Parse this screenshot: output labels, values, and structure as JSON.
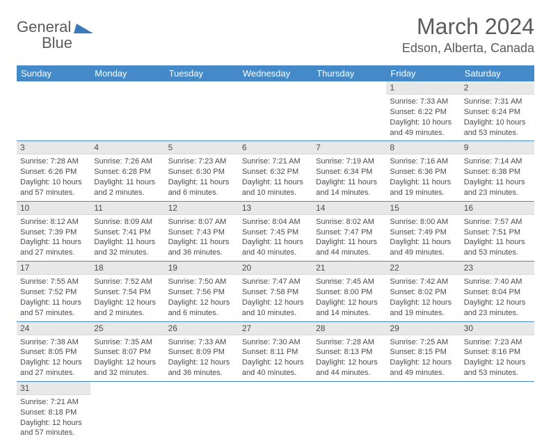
{
  "brand": {
    "part1": "General",
    "part2": "Blue"
  },
  "title": "March 2024",
  "location": "Edson, Alberta, Canada",
  "colors": {
    "header_bg": "#4489c8",
    "header_text": "#ffffff",
    "daynum_bg": "#e8e8e8",
    "text": "#4a4a4a",
    "rule": "#4489c8"
  },
  "day_names": [
    "Sunday",
    "Monday",
    "Tuesday",
    "Wednesday",
    "Thursday",
    "Friday",
    "Saturday"
  ],
  "weeks": [
    [
      null,
      null,
      null,
      null,
      null,
      {
        "n": "1",
        "sr": "7:33 AM",
        "ss": "6:22 PM",
        "d1": "10 hours",
        "d2": "and 49 minutes."
      },
      {
        "n": "2",
        "sr": "7:31 AM",
        "ss": "6:24 PM",
        "d1": "10 hours",
        "d2": "and 53 minutes."
      }
    ],
    [
      {
        "n": "3",
        "sr": "7:28 AM",
        "ss": "6:26 PM",
        "d1": "10 hours",
        "d2": "and 57 minutes."
      },
      {
        "n": "4",
        "sr": "7:26 AM",
        "ss": "6:28 PM",
        "d1": "11 hours",
        "d2": "and 2 minutes."
      },
      {
        "n": "5",
        "sr": "7:23 AM",
        "ss": "6:30 PM",
        "d1": "11 hours",
        "d2": "and 6 minutes."
      },
      {
        "n": "6",
        "sr": "7:21 AM",
        "ss": "6:32 PM",
        "d1": "11 hours",
        "d2": "and 10 minutes."
      },
      {
        "n": "7",
        "sr": "7:19 AM",
        "ss": "6:34 PM",
        "d1": "11 hours",
        "d2": "and 14 minutes."
      },
      {
        "n": "8",
        "sr": "7:16 AM",
        "ss": "6:36 PM",
        "d1": "11 hours",
        "d2": "and 19 minutes."
      },
      {
        "n": "9",
        "sr": "7:14 AM",
        "ss": "6:38 PM",
        "d1": "11 hours",
        "d2": "and 23 minutes."
      }
    ],
    [
      {
        "n": "10",
        "sr": "8:12 AM",
        "ss": "7:39 PM",
        "d1": "11 hours",
        "d2": "and 27 minutes."
      },
      {
        "n": "11",
        "sr": "8:09 AM",
        "ss": "7:41 PM",
        "d1": "11 hours",
        "d2": "and 32 minutes."
      },
      {
        "n": "12",
        "sr": "8:07 AM",
        "ss": "7:43 PM",
        "d1": "11 hours",
        "d2": "and 36 minutes."
      },
      {
        "n": "13",
        "sr": "8:04 AM",
        "ss": "7:45 PM",
        "d1": "11 hours",
        "d2": "and 40 minutes."
      },
      {
        "n": "14",
        "sr": "8:02 AM",
        "ss": "7:47 PM",
        "d1": "11 hours",
        "d2": "and 44 minutes."
      },
      {
        "n": "15",
        "sr": "8:00 AM",
        "ss": "7:49 PM",
        "d1": "11 hours",
        "d2": "and 49 minutes."
      },
      {
        "n": "16",
        "sr": "7:57 AM",
        "ss": "7:51 PM",
        "d1": "11 hours",
        "d2": "and 53 minutes."
      }
    ],
    [
      {
        "n": "17",
        "sr": "7:55 AM",
        "ss": "7:52 PM",
        "d1": "11 hours",
        "d2": "and 57 minutes."
      },
      {
        "n": "18",
        "sr": "7:52 AM",
        "ss": "7:54 PM",
        "d1": "12 hours",
        "d2": "and 2 minutes."
      },
      {
        "n": "19",
        "sr": "7:50 AM",
        "ss": "7:56 PM",
        "d1": "12 hours",
        "d2": "and 6 minutes."
      },
      {
        "n": "20",
        "sr": "7:47 AM",
        "ss": "7:58 PM",
        "d1": "12 hours",
        "d2": "and 10 minutes."
      },
      {
        "n": "21",
        "sr": "7:45 AM",
        "ss": "8:00 PM",
        "d1": "12 hours",
        "d2": "and 14 minutes."
      },
      {
        "n": "22",
        "sr": "7:42 AM",
        "ss": "8:02 PM",
        "d1": "12 hours",
        "d2": "and 19 minutes."
      },
      {
        "n": "23",
        "sr": "7:40 AM",
        "ss": "8:04 PM",
        "d1": "12 hours",
        "d2": "and 23 minutes."
      }
    ],
    [
      {
        "n": "24",
        "sr": "7:38 AM",
        "ss": "8:05 PM",
        "d1": "12 hours",
        "d2": "and 27 minutes."
      },
      {
        "n": "25",
        "sr": "7:35 AM",
        "ss": "8:07 PM",
        "d1": "12 hours",
        "d2": "and 32 minutes."
      },
      {
        "n": "26",
        "sr": "7:33 AM",
        "ss": "8:09 PM",
        "d1": "12 hours",
        "d2": "and 36 minutes."
      },
      {
        "n": "27",
        "sr": "7:30 AM",
        "ss": "8:11 PM",
        "d1": "12 hours",
        "d2": "and 40 minutes."
      },
      {
        "n": "28",
        "sr": "7:28 AM",
        "ss": "8:13 PM",
        "d1": "12 hours",
        "d2": "and 44 minutes."
      },
      {
        "n": "29",
        "sr": "7:25 AM",
        "ss": "8:15 PM",
        "d1": "12 hours",
        "d2": "and 49 minutes."
      },
      {
        "n": "30",
        "sr": "7:23 AM",
        "ss": "8:16 PM",
        "d1": "12 hours",
        "d2": "and 53 minutes."
      }
    ],
    [
      {
        "n": "31",
        "sr": "7:21 AM",
        "ss": "8:18 PM",
        "d1": "12 hours",
        "d2": "and 57 minutes."
      },
      null,
      null,
      null,
      null,
      null,
      null
    ]
  ],
  "labels": {
    "sunrise": "Sunrise: ",
    "sunset": "Sunset: ",
    "daylight": "Daylight: "
  }
}
